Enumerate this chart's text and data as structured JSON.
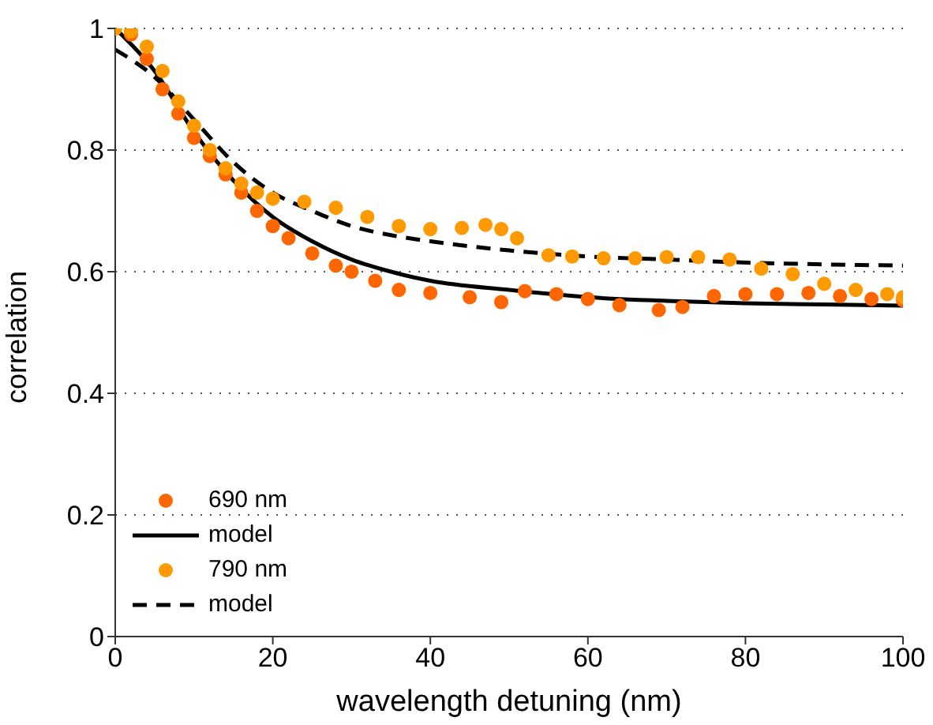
{
  "chart_data": {
    "type": "scatter",
    "xlabel": "wavelength detuning (nm)",
    "ylabel": "correlation",
    "xlim": [
      0,
      100
    ],
    "xticks": [
      0,
      20,
      40,
      60,
      80,
      100
    ],
    "ylim": [
      0,
      1
    ],
    "yticks": [
      0,
      0.2,
      0.4,
      0.6,
      0.8,
      1
    ],
    "grid": "y",
    "legend": "bottom left",
    "series": [
      {
        "name": "690 nm",
        "marker": "circle",
        "color": "#ff6600",
        "x": [
          2,
          4,
          6,
          8,
          10,
          12,
          14,
          16,
          18,
          20,
          22,
          25,
          28,
          30,
          33,
          36,
          40,
          45,
          49,
          52,
          56,
          60,
          64,
          69,
          72,
          76,
          80,
          84,
          88,
          92,
          96,
          100
        ],
        "values": [
          0.99,
          0.95,
          0.9,
          0.86,
          0.82,
          0.79,
          0.76,
          0.73,
          0.7,
          0.675,
          0.655,
          0.63,
          0.61,
          0.6,
          0.585,
          0.57,
          0.565,
          0.558,
          0.55,
          0.568,
          0.563,
          0.555,
          0.545,
          0.537,
          0.542,
          0.56,
          0.563,
          0.563,
          0.565,
          0.56,
          0.555,
          0.553
        ]
      },
      {
        "name": "model",
        "type": "line",
        "marker": "none",
        "color": "#000000",
        "line_style": "solid",
        "x": [
          0,
          5,
          10,
          15,
          20,
          25,
          30,
          35,
          40,
          50,
          60,
          70,
          80,
          90,
          100
        ],
        "values": [
          1.0,
          0.93,
          0.83,
          0.75,
          0.69,
          0.65,
          0.62,
          0.6,
          0.585,
          0.57,
          0.558,
          0.552,
          0.548,
          0.546,
          0.544
        ]
      },
      {
        "name": "790 nm",
        "marker": "circle",
        "color": "#ff9900",
        "x": [
          0,
          2,
          4,
          6,
          8,
          10,
          12,
          14,
          16,
          18,
          20,
          24,
          28,
          32,
          36,
          40,
          44,
          47,
          49,
          51,
          55,
          58,
          62,
          66,
          70,
          74,
          78,
          82,
          86,
          90,
          94,
          98,
          100
        ],
        "values": [
          1.0,
          0.995,
          0.97,
          0.93,
          0.88,
          0.84,
          0.8,
          0.77,
          0.745,
          0.73,
          0.72,
          0.715,
          0.705,
          0.69,
          0.675,
          0.67,
          0.672,
          0.677,
          0.67,
          0.655,
          0.627,
          0.625,
          0.622,
          0.622,
          0.624,
          0.624,
          0.62,
          0.605,
          0.596,
          0.58,
          0.57,
          0.563,
          0.558
        ]
      },
      {
        "name": "model",
        "type": "line",
        "marker": "none",
        "color": "#000000",
        "line_style": "dashed",
        "x": [
          0,
          5,
          10,
          15,
          20,
          25,
          30,
          35,
          40,
          50,
          60,
          70,
          80,
          90,
          100
        ],
        "values": [
          0.965,
          0.92,
          0.85,
          0.78,
          0.73,
          0.7,
          0.675,
          0.66,
          0.65,
          0.635,
          0.625,
          0.62,
          0.615,
          0.612,
          0.61
        ]
      }
    ]
  }
}
